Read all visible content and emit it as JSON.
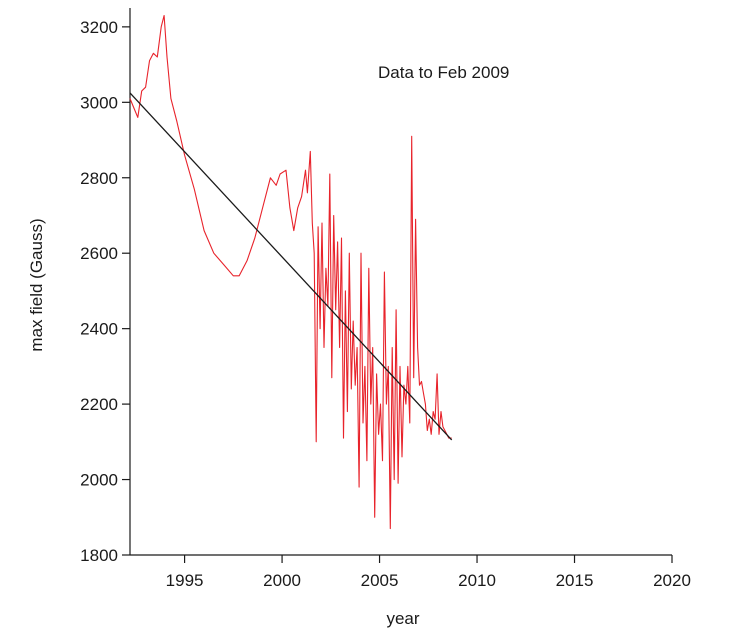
{
  "chart_data": {
    "type": "line",
    "xlabel": "year",
    "ylabel": "max field (Gauss)",
    "annotation": "Data to Feb 2009",
    "xlim": [
      1992.2,
      2020
    ],
    "ylim": [
      1800,
      3250
    ],
    "xticks": [
      1995,
      2000,
      2005,
      2010,
      2015,
      2020
    ],
    "yticks": [
      1800,
      2000,
      2200,
      2400,
      2600,
      2800,
      3000,
      3200
    ],
    "grid": false,
    "series": [
      {
        "color": "#e8232b",
        "x": [
          1992.2,
          1992.4,
          1992.6,
          1992.8,
          1993.0,
          1993.2,
          1993.4,
          1993.6,
          1993.8,
          1993.95,
          1994.1,
          1994.3,
          1994.6,
          1995.0,
          1995.5,
          1996.0,
          1996.5,
          1997.0,
          1997.5,
          1997.8,
          1998.2,
          1998.6,
          1999.0,
          1999.4,
          1999.7,
          1999.9,
          2000.2,
          2000.4,
          2000.6,
          2000.8,
          2001.0,
          2001.2,
          2001.3,
          2001.45,
          2001.55,
          2001.65,
          2001.75,
          2001.85,
          2001.95,
          2002.05,
          2002.15,
          2002.25,
          2002.35,
          2002.45,
          2002.55,
          2002.65,
          2002.75,
          2002.85,
          2002.95,
          2003.05,
          2003.15,
          2003.25,
          2003.35,
          2003.45,
          2003.55,
          2003.65,
          2003.75,
          2003.85,
          2003.95,
          2004.05,
          2004.15,
          2004.25,
          2004.35,
          2004.45,
          2004.55,
          2004.65,
          2004.75,
          2004.85,
          2004.95,
          2005.05,
          2005.15,
          2005.25,
          2005.35,
          2005.45,
          2005.55,
          2005.65,
          2005.75,
          2005.85,
          2005.95,
          2006.05,
          2006.15,
          2006.25,
          2006.35,
          2006.45,
          2006.55,
          2006.65,
          2006.75,
          2006.85,
          2006.95,
          2007.05,
          2007.15,
          2007.25,
          2007.35,
          2007.45,
          2007.55,
          2007.65,
          2007.75,
          2007.85,
          2007.95,
          2008.05,
          2008.15,
          2008.25,
          2008.35,
          2008.45,
          2008.55,
          2008.7
        ],
        "y": [
          3010,
          2985,
          2960,
          3030,
          3040,
          3110,
          3130,
          3120,
          3200,
          3230,
          3120,
          3010,
          2950,
          2860,
          2770,
          2660,
          2600,
          2570,
          2540,
          2540,
          2580,
          2640,
          2720,
          2800,
          2780,
          2810,
          2820,
          2720,
          2660,
          2720,
          2750,
          2820,
          2760,
          2870,
          2680,
          2600,
          2100,
          2670,
          2400,
          2680,
          2350,
          2560,
          2460,
          2810,
          2270,
          2700,
          2450,
          2630,
          2350,
          2640,
          2110,
          2500,
          2180,
          2600,
          2240,
          2420,
          2250,
          2350,
          1980,
          2600,
          2150,
          2300,
          2050,
          2560,
          2200,
          2350,
          1900,
          2280,
          2120,
          2200,
          2050,
          2550,
          2200,
          2300,
          1870,
          2350,
          2000,
          2450,
          1990,
          2300,
          2060,
          2250,
          2200,
          2300,
          2150,
          2910,
          2270,
          2690,
          2350,
          2250,
          2260,
          2230,
          2200,
          2130,
          2160,
          2120,
          2180,
          2160,
          2280,
          2120,
          2180,
          2140,
          2130,
          2120,
          2110,
          2110
        ]
      },
      {
        "color": "#1a1a1a",
        "x": [
          1992.2,
          2008.7
        ],
        "y": [
          3025,
          2105
        ]
      }
    ]
  }
}
